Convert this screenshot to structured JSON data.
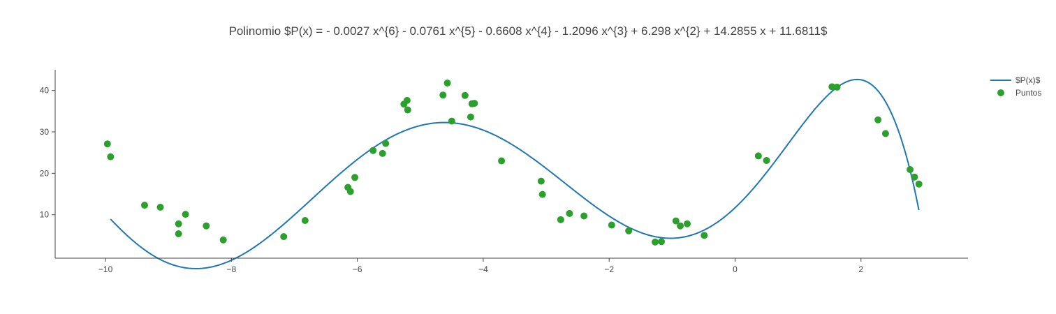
{
  "chart_data": {
    "type": "scatter",
    "title": "Polinomio $P(x) = - 0.0027 x^{6} - 0.0761 x^{5} - 0.6608 x^{4} - 1.2096 x^{3} + 6.298 x^{2} + 14.2855 x + 11.6811$",
    "xlabel": "",
    "ylabel": "",
    "xlim": [
      -10.8,
      3.7
    ],
    "ylim": [
      -0.5,
      45
    ],
    "x_ticks": [
      -10,
      -8,
      -6,
      -4,
      -2,
      0,
      2
    ],
    "y_ticks": [
      10,
      20,
      30,
      40
    ],
    "grid": false,
    "legend_position": "top-right",
    "series": [
      {
        "name": "$P(x)$",
        "kind": "line",
        "color": "#1f77b4",
        "coefficients": [
          -0.0027,
          -0.0761,
          -0.6608,
          -1.2096,
          6.298,
          14.2855,
          11.6811
        ],
        "x_range": [
          -9.92,
          2.92
        ]
      },
      {
        "name": "Puntos",
        "kind": "markers",
        "color": "#2ca02c",
        "points": [
          [
            -9.97,
            27.1
          ],
          [
            -9.92,
            24.0
          ],
          [
            -9.38,
            12.3
          ],
          [
            -9.13,
            11.8
          ],
          [
            -8.84,
            7.8
          ],
          [
            -8.84,
            5.4
          ],
          [
            -8.73,
            10.1
          ],
          [
            -8.4,
            7.3
          ],
          [
            -8.13,
            3.9
          ],
          [
            -7.17,
            4.7
          ],
          [
            -6.83,
            8.6
          ],
          [
            -6.15,
            16.6
          ],
          [
            -6.11,
            15.6
          ],
          [
            -6.04,
            19.0
          ],
          [
            -5.75,
            25.5
          ],
          [
            -5.6,
            24.8
          ],
          [
            -5.55,
            27.2
          ],
          [
            -5.26,
            36.7
          ],
          [
            -5.21,
            37.6
          ],
          [
            -5.2,
            35.3
          ],
          [
            -4.64,
            38.9
          ],
          [
            -4.57,
            41.8
          ],
          [
            -4.5,
            32.6
          ],
          [
            -4.29,
            38.8
          ],
          [
            -4.2,
            33.6
          ],
          [
            -4.18,
            36.8
          ],
          [
            -4.14,
            36.9
          ],
          [
            -3.71,
            23.0
          ],
          [
            -3.08,
            18.1
          ],
          [
            -3.06,
            14.9
          ],
          [
            -2.77,
            8.8
          ],
          [
            -2.63,
            10.3
          ],
          [
            -2.4,
            9.7
          ],
          [
            -1.96,
            7.5
          ],
          [
            -1.69,
            6.1
          ],
          [
            -1.27,
            3.4
          ],
          [
            -1.17,
            3.5
          ],
          [
            -0.94,
            8.5
          ],
          [
            -0.87,
            7.3
          ],
          [
            -0.76,
            7.8
          ],
          [
            -0.49,
            5.0
          ],
          [
            0.37,
            24.2
          ],
          [
            0.5,
            23.1
          ],
          [
            1.54,
            40.9
          ],
          [
            1.62,
            40.8
          ],
          [
            2.27,
            32.9
          ],
          [
            2.39,
            29.6
          ],
          [
            2.78,
            20.9
          ],
          [
            2.85,
            19.1
          ],
          [
            2.92,
            17.4
          ]
        ]
      }
    ]
  }
}
